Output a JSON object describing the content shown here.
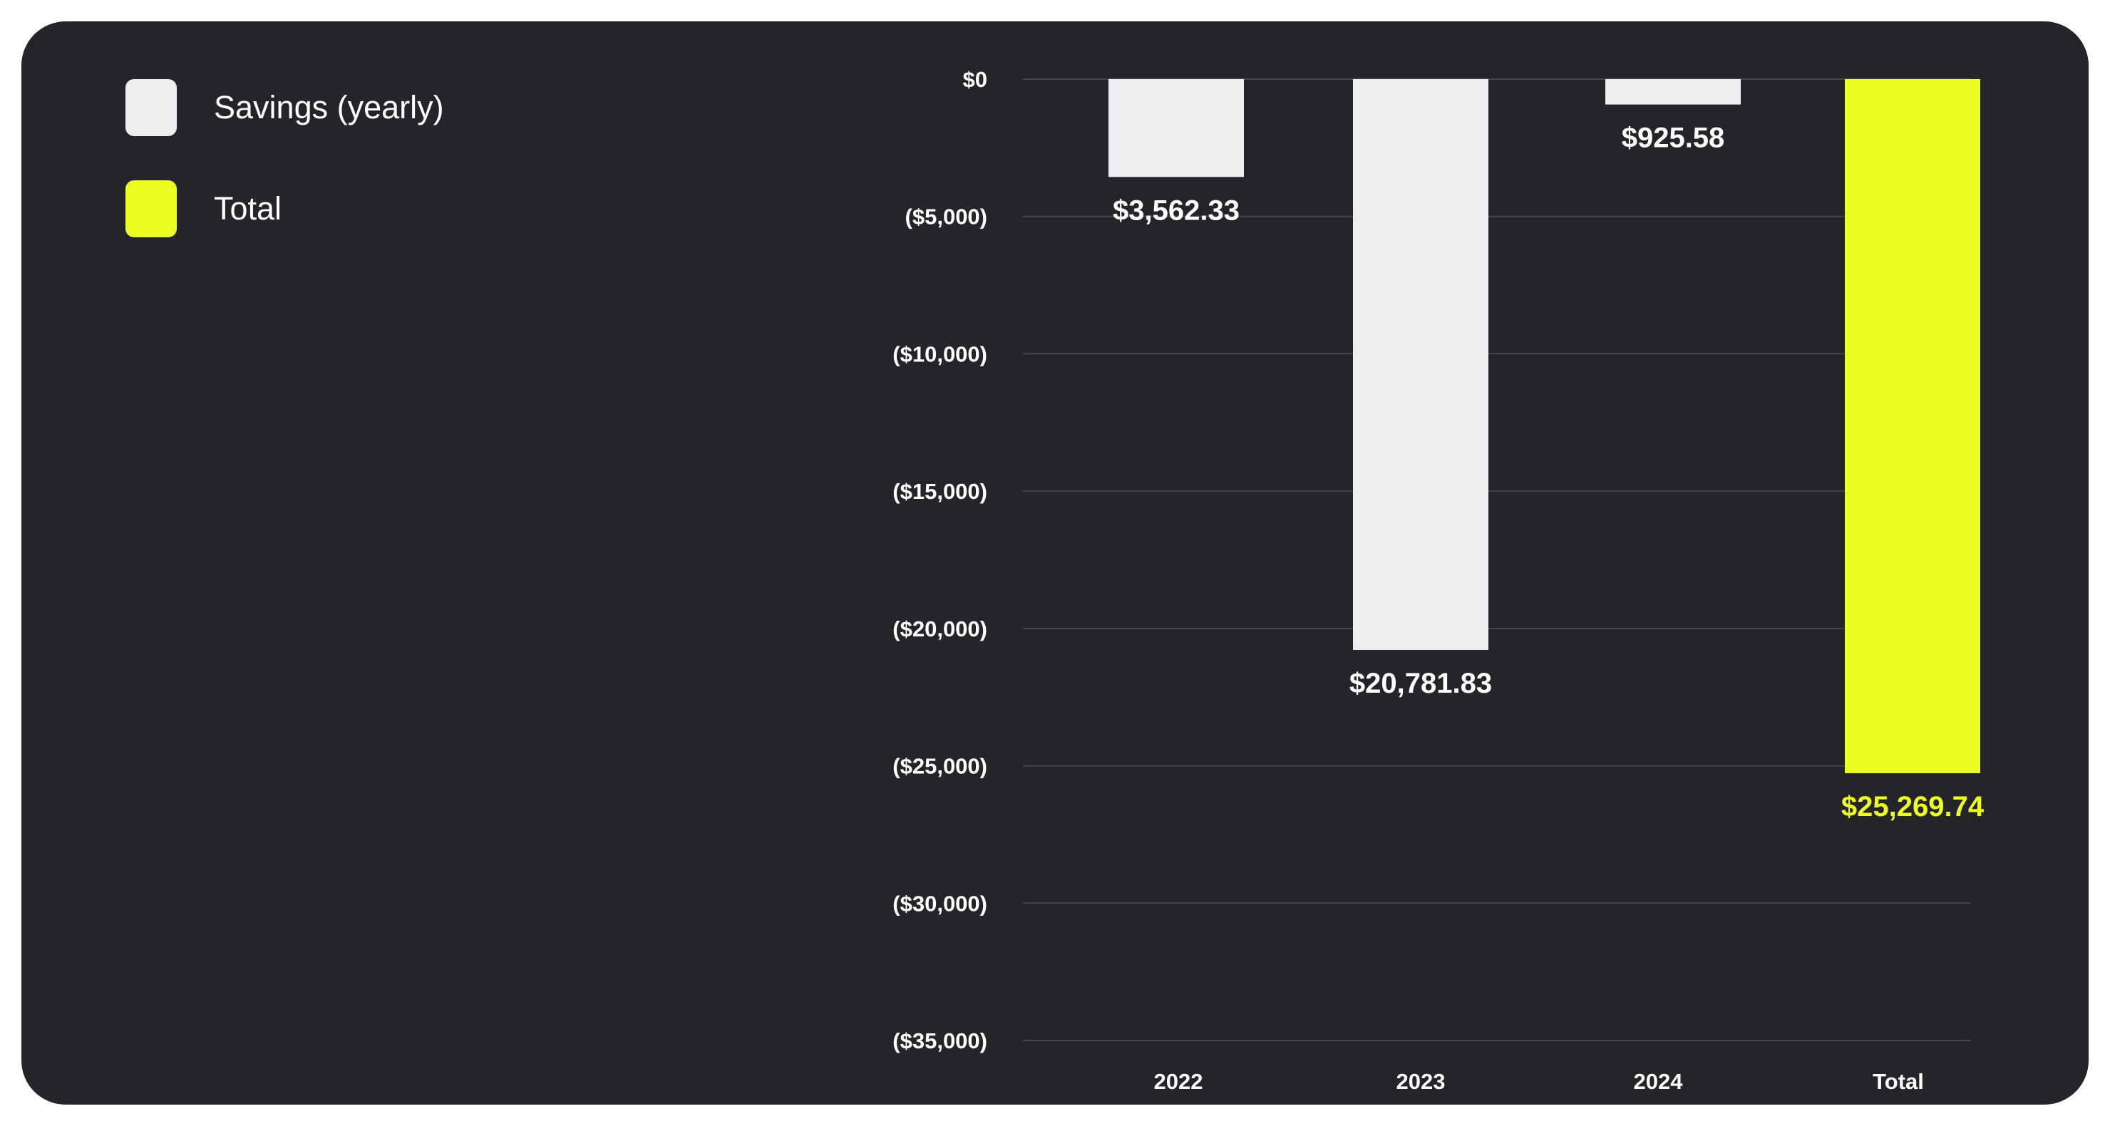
{
  "colors": {
    "background": "#242429",
    "savings": "#eeeeee",
    "total": "#ecfd23",
    "grid": "#45454b",
    "text": "#ffffff"
  },
  "legend": {
    "items": [
      {
        "label": "Savings (yearly)",
        "color": "#eeeeee"
      },
      {
        "label": "Total",
        "color": "#ecfd23"
      }
    ]
  },
  "chart_data": {
    "type": "bar",
    "categories": [
      "2022",
      "2023",
      "2024",
      "Total"
    ],
    "series": [
      {
        "name": "Savings (yearly)",
        "values": [
          -3562.33,
          -20781.83,
          -925.58,
          null
        ]
      },
      {
        "name": "Total",
        "values": [
          null,
          null,
          null,
          -25269.74
        ]
      }
    ],
    "data_labels": [
      "$3,562.33",
      "$20,781.83",
      "$925.58",
      "$25,269.74"
    ],
    "ylim": [
      -35000,
      0
    ],
    "yticks": [
      0,
      -5000,
      -10000,
      -15000,
      -20000,
      -25000,
      -30000,
      -35000
    ],
    "ytick_labels": [
      "$0",
      "($5,000)",
      "($10,000)",
      "($15,000)",
      "($20,000)",
      "($25,000)",
      "($30,000)",
      "($35,000)"
    ],
    "grid": true,
    "legend_position": "top-left",
    "title": "",
    "xlabel": "",
    "ylabel": ""
  }
}
